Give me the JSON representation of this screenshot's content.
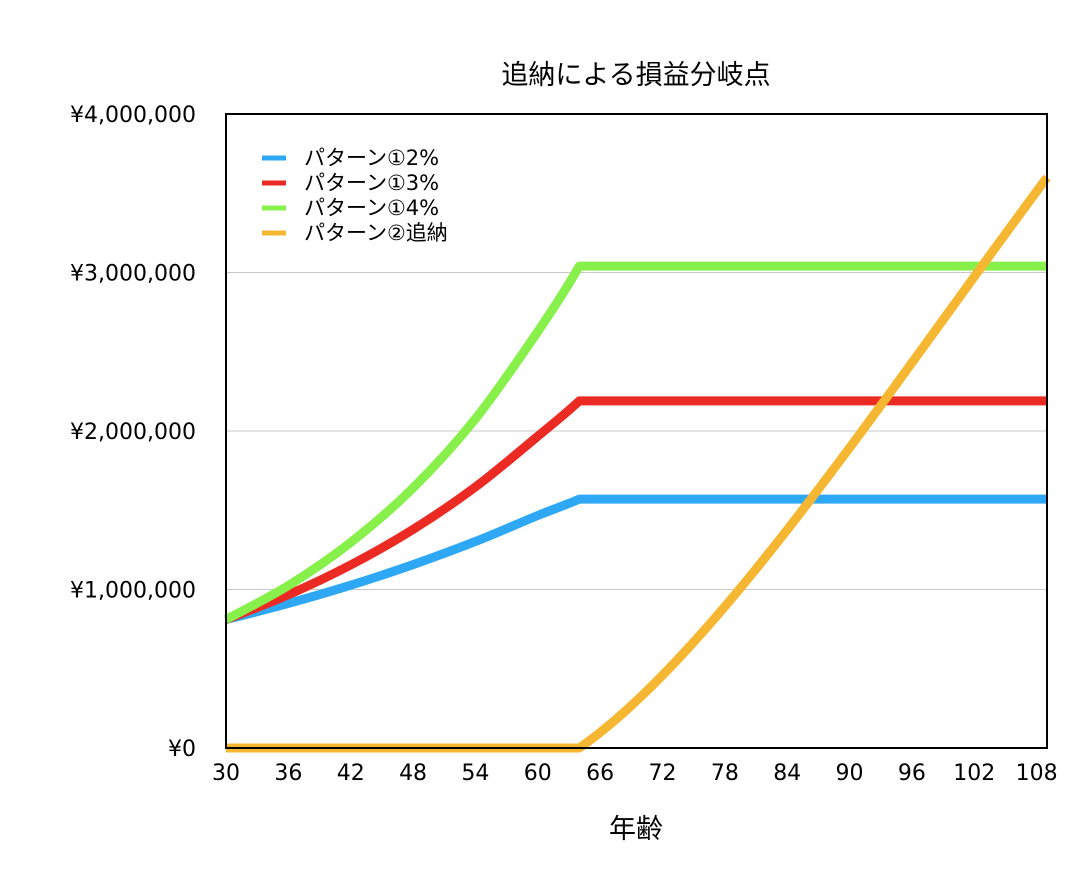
{
  "chart_data": {
    "type": "line",
    "title": "追納による損益分岐点",
    "xlabel": "年齢",
    "ylabel": "",
    "xlim": [
      30,
      109
    ],
    "ylim": [
      0,
      4000000
    ],
    "x_ticks": [
      "30",
      "36",
      "42",
      "48",
      "54",
      "60",
      "66",
      "72",
      "78",
      "84",
      "90",
      "96",
      "102",
      "108"
    ],
    "y_ticks": [
      "¥0",
      "¥1,000,000",
      "¥2,000,000",
      "¥3,000,000",
      "¥4,000,000"
    ],
    "y_tick_values": [
      0,
      1000000,
      2000000,
      3000000,
      4000000
    ],
    "grid": "horizontal",
    "legend_position": "top-left",
    "series": [
      {
        "name": "パターン①2%",
        "color": "#2EA8F5",
        "points": [
          [
            30,
            810000
          ],
          [
            36,
            912000
          ],
          [
            42,
            1027000
          ],
          [
            48,
            1157000
          ],
          [
            54,
            1303000
          ],
          [
            60,
            1467000
          ],
          [
            64,
            1570000
          ],
          [
            70,
            1570000
          ],
          [
            80,
            1570000
          ],
          [
            90,
            1570000
          ],
          [
            100,
            1570000
          ],
          [
            109,
            1570000
          ]
        ]
      },
      {
        "name": "パターン①3%",
        "color": "#EB2A23",
        "points": [
          [
            30,
            810000
          ],
          [
            36,
            967000
          ],
          [
            42,
            1155000
          ],
          [
            48,
            1379000
          ],
          [
            54,
            1647000
          ],
          [
            60,
            1967000
          ],
          [
            64,
            2190000
          ],
          [
            70,
            2190000
          ],
          [
            80,
            2190000
          ],
          [
            90,
            2190000
          ],
          [
            100,
            2190000
          ],
          [
            109,
            2190000
          ]
        ]
      },
      {
        "name": "パターン①4%",
        "color": "#88F04B",
        "points": [
          [
            30,
            810000
          ],
          [
            36,
            1025000
          ],
          [
            42,
            1297000
          ],
          [
            48,
            1641000
          ],
          [
            54,
            2077000
          ],
          [
            60,
            2627000
          ],
          [
            64,
            3040000
          ],
          [
            70,
            3040000
          ],
          [
            80,
            3040000
          ],
          [
            90,
            3040000
          ],
          [
            100,
            3040000
          ],
          [
            109,
            3040000
          ]
        ]
      },
      {
        "name": "パターン②追納",
        "color": "#F5B731",
        "points": [
          [
            30,
            0
          ],
          [
            64,
            0
          ],
          [
            109,
            3600000
          ]
        ]
      }
    ]
  }
}
